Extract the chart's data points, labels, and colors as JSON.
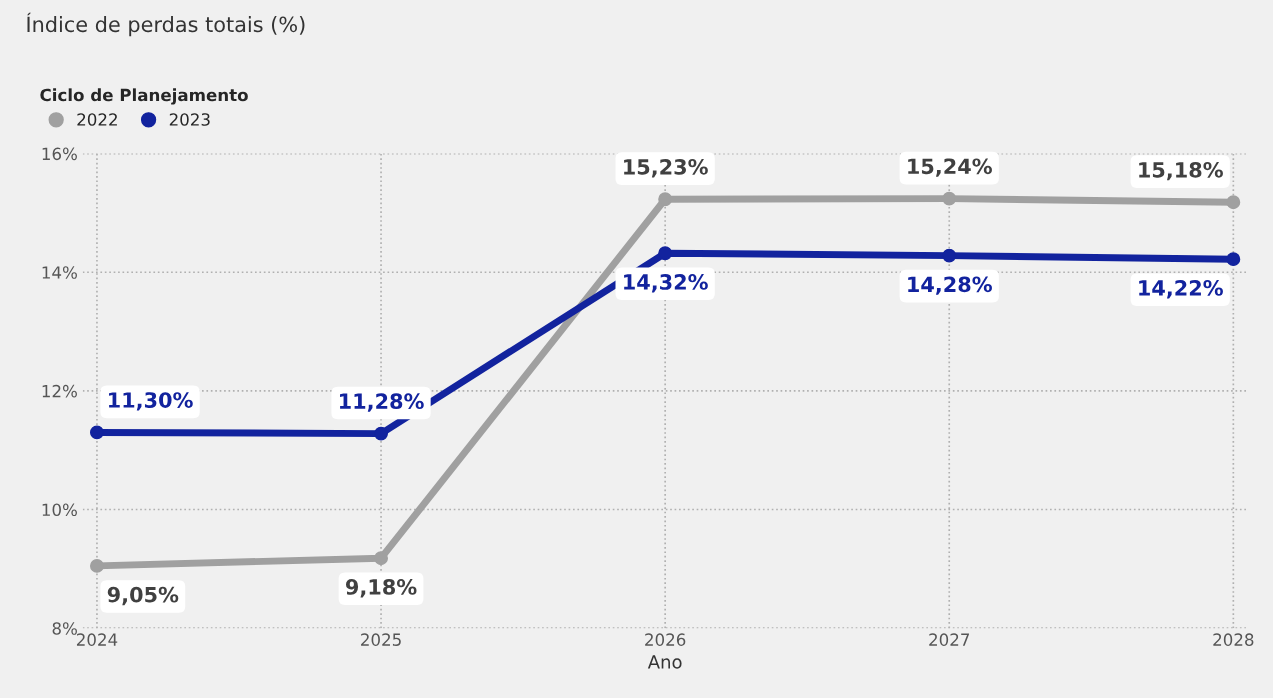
{
  "chart_data": {
    "type": "line",
    "title": "Índice de perdas totais (%)",
    "xlabel": "Ano",
    "legend_title": "Ciclo de Planejamento",
    "categories": [
      "2024",
      "2025",
      "2026",
      "2027",
      "2028"
    ],
    "series": [
      {
        "name": "2022",
        "color": "#a0a0a0",
        "values": [
          9.05,
          9.18,
          15.23,
          15.24,
          15.18
        ],
        "value_labels": [
          "9,05%",
          "9,18%",
          "15,23%",
          "15,24%",
          "15,18%"
        ]
      },
      {
        "name": "2023",
        "color": "#12239e",
        "values": [
          11.3,
          11.28,
          14.32,
          14.28,
          14.22
        ],
        "value_labels": [
          "11,30%",
          "11,28%",
          "14,32%",
          "14,28%",
          "14,22%"
        ]
      }
    ],
    "ylim": [
      8,
      16
    ],
    "yticks": [
      {
        "value": 8,
        "label": "8%"
      },
      {
        "value": 10,
        "label": "10%"
      },
      {
        "value": 12,
        "label": "12%"
      },
      {
        "value": 14,
        "label": "14%"
      },
      {
        "value": 16,
        "label": "16%"
      }
    ],
    "grid": true,
    "legend": "top left",
    "marker": "circle",
    "line_style": "solid"
  }
}
